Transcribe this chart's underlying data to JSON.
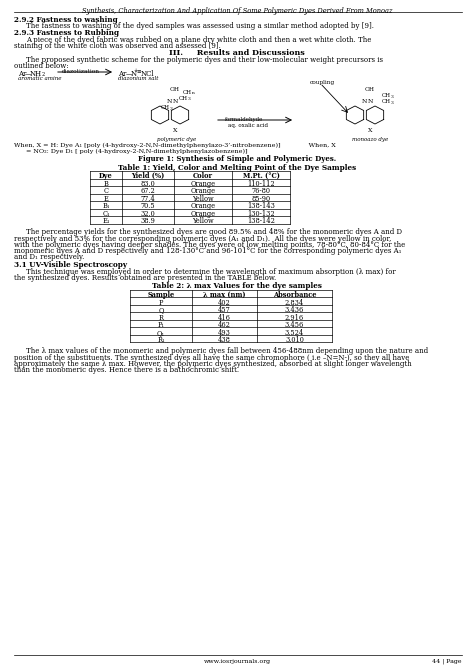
{
  "page_title": "Synthesis, Characterization And Application Of Some Polymeric Dyes Derived From Monoaz",
  "section_292_title": "2.9.2 Fastness to washing",
  "section_292_text": "The fastness to washing of the dyed samples was assessed using a similar method adopted by [9].",
  "section_293_title": "2.9.3 Fastness to Rubbing",
  "section_293_text_1": "A piece of the dyed fabric was rubbed on a plane dry white cloth and then a wet white cloth. The",
  "section_293_text_2": "staining of the white cloth was observed and assessed [9].",
  "section3_title": "III.     Results and Discussions",
  "section3_intro_1": "The proposed synthetic scheme for the polymeric dyes and their low-molecular weight precursors is",
  "section3_intro_2": "outlined below:",
  "figure1_caption_line1": "When, X = H: Dye A₁ [poly (4-hydroxy-2-N,N-dimethylphenylazo-3’-nitrobenzene)]              When, X",
  "figure1_caption_line2": "= NO₂: Dye D₁ [ poly (4-hydroxy-2-N,N-dimethylphenylazobenzene)]",
  "figure1_caption": "Figure 1: Synthesis of Simple and Polymeric Dyes.",
  "table1_title": "Table 1: Yield, Color and Melting Point of the Dye Samples",
  "table1_headers": [
    "Dye",
    "Yield (%)",
    "Color",
    "M.Pt. (°C)"
  ],
  "table1_rows": [
    [
      "B",
      "83.0",
      "Orange",
      "110-112"
    ],
    [
      "C",
      "67.2",
      "Orange",
      "76-80"
    ],
    [
      "E",
      "77.4",
      "Yellow",
      "85-90"
    ],
    [
      "B₁",
      "70.5",
      "Orange",
      "138-143"
    ],
    [
      "C₁",
      "32.0",
      "Orange",
      "130-132"
    ],
    [
      "E₁",
      "38.9",
      "Yellow",
      "138-142"
    ]
  ],
  "para1_lines": [
    "The percentage yields for the synthesized dyes are good 89.5% and 48% for the monomeric dyes A and D",
    "respectively and 53% for the corresponding polymeric dyes (A₁ and D₁).  All the dyes were yellow in color,",
    "with the polymeric dyes having deeper shades. The dyes were of low melting points, 78-80°C, 80-84°C for the",
    "monomeric dyes A and D respectively and 128-130°C and 96-101°C for the corresponding polymeric dyes A₁",
    "and D₁ respectively."
  ],
  "section31_title": "3.1 UV-Visible Spectroscopy",
  "section31_text_1": "This technique was employed in order to determine the wavelength of maximum absorption (λ max) for",
  "section31_text_2": "the synthesized dyes. Results obtained are presented in the TABLE below.",
  "table2_title": "Table 2: λ max Values for the dye samples",
  "table2_headers": [
    "Sample",
    "λ max (nm)",
    "Absorbance"
  ],
  "table2_rows": [
    [
      "P",
      "402",
      "2.834"
    ],
    [
      "Q",
      "457",
      "3.436"
    ],
    [
      "R",
      "416",
      "2.916"
    ],
    [
      "P₁",
      "462",
      "3.456"
    ],
    [
      "Q₁",
      "493",
      "3.524"
    ],
    [
      "R₁",
      "438",
      "3.010"
    ]
  ],
  "para2_lines": [
    "The λ max values of the monomeric and polymeric dyes fall between 456-488nm depending upon the nature and",
    "position of the substituents. The synthesized dyes all have the same chromophore ( i.e –N=N-), so they all have",
    "approximately the same λ max. However, the polymeric dyes synthesized, absorbed at slight longer wavelength",
    "than the monomeric dyes. Hence there is a bathochromic shift."
  ],
  "footer_url": "www.iosrjournals.org",
  "footer_page": "44 | Page"
}
